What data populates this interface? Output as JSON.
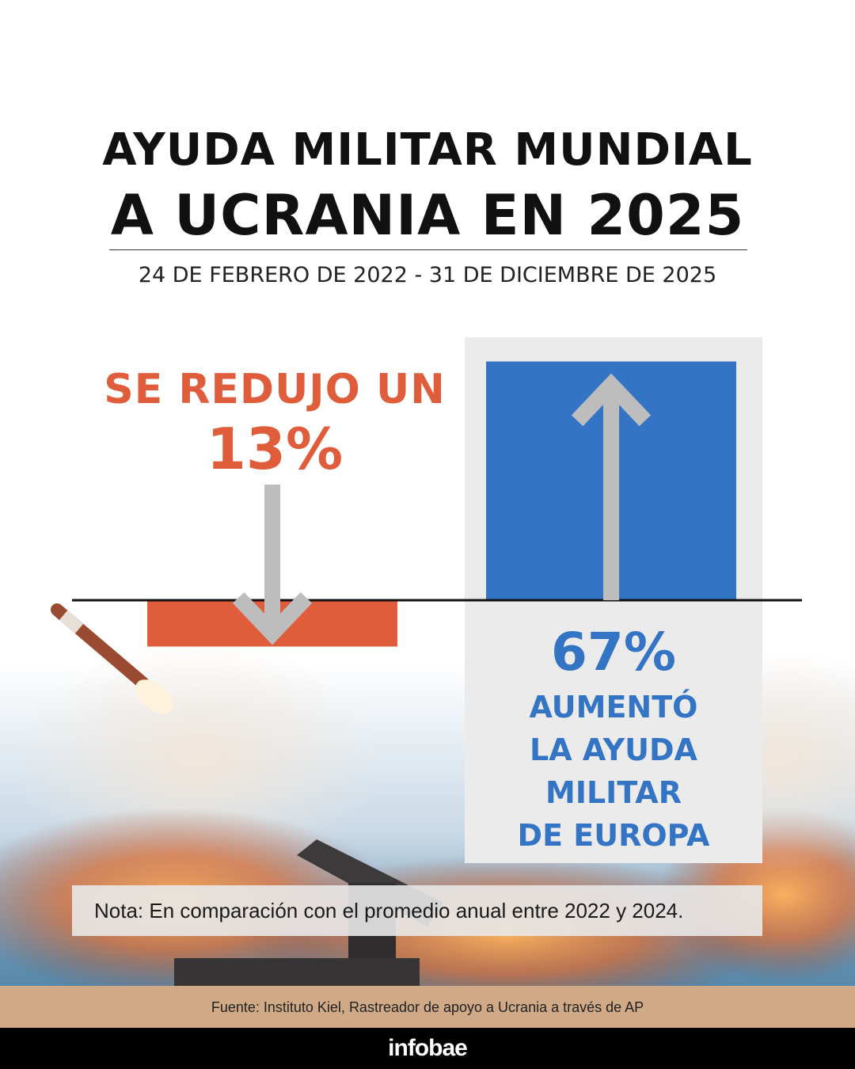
{
  "header": {
    "title_line1": "AYUDA MILITAR MUNDIAL",
    "title_line2": "A UCRANIA EN 2025",
    "subtitle": "24 DE FEBRERO DE 2022 - 31 DE DICIEMBRE DE 2025"
  },
  "colors": {
    "decrease": "#e05d3c",
    "increase": "#3474c4",
    "arrow": "#bdbdbd",
    "baseline": "#111111"
  },
  "chart_data": {
    "type": "bar",
    "categories": [
      "Mundial",
      "Europa"
    ],
    "values": [
      -13,
      67
    ],
    "unit": "%",
    "ylim": [
      -20,
      100
    ],
    "grid": false,
    "annotations": [
      {
        "label": "SE REDUJO UN",
        "value": "13%"
      },
      {
        "label": "AUMENTÓ\nLA AYUDA\nMILITAR\nDE EUROPA",
        "value": "67%"
      }
    ]
  },
  "note": "Nota: En comparación con el promedio anual entre 2022 y 2024.",
  "source": "Fuente: Instituto Kiel, Rastreador de apoyo a Ucrania a través de AP",
  "brand": "infobae"
}
